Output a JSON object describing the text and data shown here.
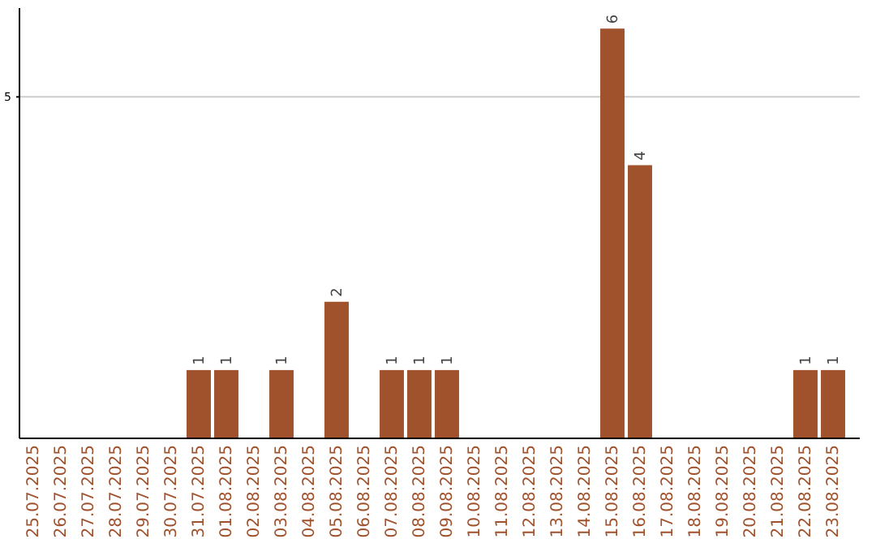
{
  "chart_data": {
    "type": "bar",
    "categories": [
      "25.07.2025",
      "26.07.2025",
      "27.07.2025",
      "28.07.2025",
      "29.07.2025",
      "30.07.2025",
      "31.07.2025",
      "01.08.2025",
      "02.08.2025",
      "03.08.2025",
      "04.08.2025",
      "05.08.2025",
      "06.08.2025",
      "07.08.2025",
      "08.08.2025",
      "09.08.2025",
      "10.08.2025",
      "11.08.2025",
      "12.08.2025",
      "13.08.2025",
      "14.08.2025",
      "15.08.2025",
      "16.08.2025",
      "17.08.2025",
      "18.08.2025",
      "19.08.2025",
      "20.08.2025",
      "21.08.2025",
      "22.08.2025",
      "23.08.2025"
    ],
    "values": [
      0,
      0,
      0,
      0,
      0,
      0,
      1,
      1,
      0,
      1,
      0,
      2,
      0,
      1,
      1,
      1,
      0,
      0,
      0,
      0,
      0,
      6,
      4,
      0,
      0,
      0,
      0,
      0,
      1,
      1
    ],
    "value_labels": [
      null,
      null,
      null,
      null,
      null,
      null,
      "1",
      "1",
      null,
      "1",
      null,
      "2",
      null,
      "1",
      "1",
      "1",
      null,
      null,
      null,
      null,
      null,
      "6",
      "4",
      null,
      null,
      null,
      null,
      null,
      "1",
      "1"
    ],
    "color": "#a0522d",
    "ylim": [
      0,
      6.3
    ],
    "yticks": [
      5
    ],
    "grid": "y"
  }
}
